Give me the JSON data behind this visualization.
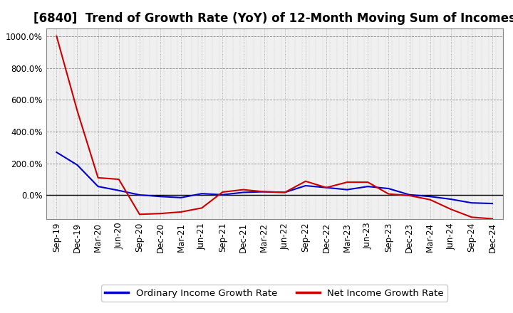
{
  "title": "[6840]  Trend of Growth Rate (YoY) of 12-Month Moving Sum of Incomes",
  "background_color": "#ffffff",
  "plot_bg_color": "#f0f0f0",
  "grid_color": "#999999",
  "ylim": [
    -150,
    1050
  ],
  "yticks": [
    0,
    200,
    400,
    600,
    800,
    1000
  ],
  "ytick_labels": [
    "0.0%",
    "200.0%",
    "400.0%",
    "600.0%",
    "800.0%",
    "1000.0%"
  ],
  "x_labels": [
    "Sep-19",
    "Dec-19",
    "Mar-20",
    "Jun-20",
    "Sep-20",
    "Dec-20",
    "Mar-21",
    "Jun-21",
    "Sep-21",
    "Dec-21",
    "Mar-22",
    "Jun-22",
    "Sep-22",
    "Dec-22",
    "Mar-23",
    "Jun-23",
    "Sep-23",
    "Dec-23",
    "Mar-24",
    "Jun-24",
    "Sep-24",
    "Dec-24"
  ],
  "ordinary_income": [
    270,
    190,
    55,
    30,
    2,
    -8,
    -15,
    10,
    3,
    18,
    22,
    18,
    60,
    48,
    35,
    55,
    42,
    3,
    -8,
    -25,
    -48,
    -52
  ],
  "net_income": [
    1000,
    530,
    110,
    100,
    -120,
    -115,
    -105,
    -80,
    20,
    35,
    22,
    18,
    88,
    48,
    82,
    82,
    8,
    -2,
    -28,
    -88,
    -138,
    -148
  ],
  "ordinary_color": "#0000cc",
  "net_color": "#cc0000",
  "line_width": 1.5,
  "title_fontsize": 12,
  "tick_fontsize": 8.5,
  "legend_fontsize": 9.5
}
